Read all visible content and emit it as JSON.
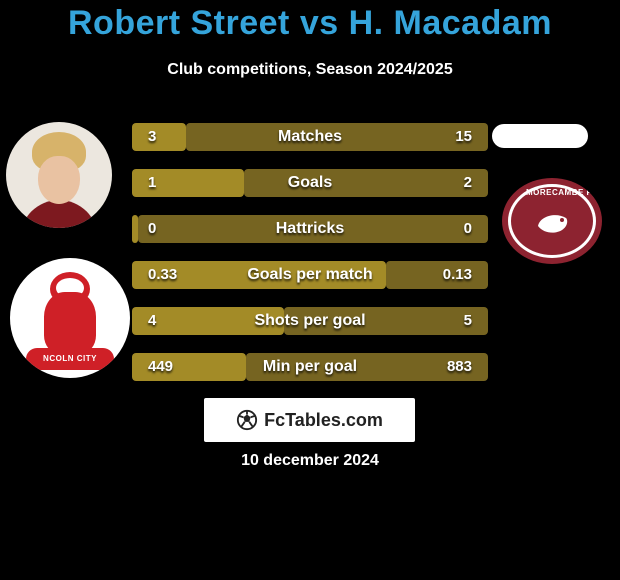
{
  "title": "Robert Street vs H. Macadam",
  "subtitle": "Club competitions, Season 2024/2025",
  "date": "10 december 2024",
  "colors": {
    "bar_left": "#a38b27",
    "bar_right": "#766421",
    "title_color": "#35a4db",
    "background": "#000000"
  },
  "brand": {
    "name": "FcTables.com"
  },
  "left_badge_text": "NCOLN CITY",
  "right_badge_text": "MORECAMBE FC",
  "stats": [
    {
      "label": "Matches",
      "left_val": "3",
      "right_val": "15",
      "left_w": 54,
      "right_w": 302
    },
    {
      "label": "Goals",
      "left_val": "1",
      "right_val": "2",
      "left_w": 112,
      "right_w": 244
    },
    {
      "label": "Hattricks",
      "left_val": "0",
      "right_val": "0",
      "left_w": 6,
      "right_w": 350
    },
    {
      "label": "Goals per match",
      "left_val": "0.33",
      "right_val": "0.13",
      "left_w": 254,
      "right_w": 102
    },
    {
      "label": "Shots per goal",
      "left_val": "4",
      "right_val": "5",
      "left_w": 152,
      "right_w": 204
    },
    {
      "label": "Min per goal",
      "left_val": "449",
      "right_val": "883",
      "left_w": 114,
      "right_w": 242
    }
  ]
}
